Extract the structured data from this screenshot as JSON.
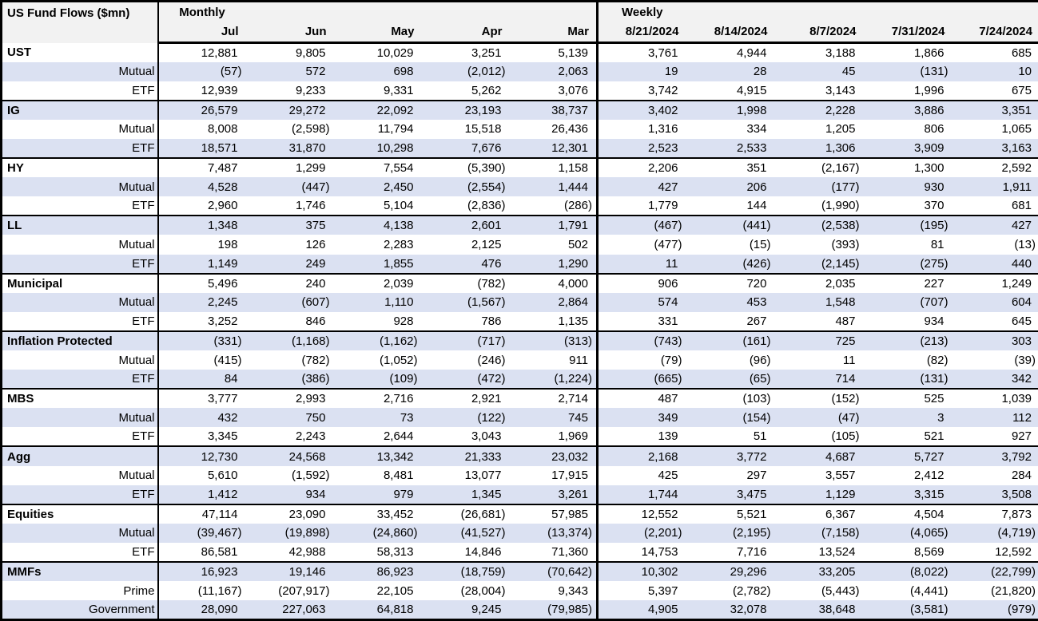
{
  "colors": {
    "band": "#dbe1f2",
    "header_bg": "#f2f2f2",
    "border": "#000000",
    "text": "#000000"
  },
  "chart_data": {
    "type": "table",
    "title": "US Fund Flows ($mn)",
    "sections": [
      {
        "label": "Monthly",
        "columns": [
          "Jul",
          "Jun",
          "May",
          "Apr",
          "Mar"
        ]
      },
      {
        "label": "Weekly",
        "columns": [
          "8/21/2024",
          "8/14/2024",
          "8/7/2024",
          "7/31/2024",
          "7/24/2024"
        ]
      }
    ],
    "groups": [
      {
        "name": "UST",
        "rows": [
          {
            "label": "UST",
            "style": "category",
            "monthly": [
              "12,881",
              "9,805",
              "10,029",
              "3,251",
              "5,139"
            ],
            "weekly": [
              "3,761",
              "4,944",
              "3,188",
              "1,866",
              "685"
            ]
          },
          {
            "label": "Mutual",
            "style": "sub",
            "monthly": [
              "(57)",
              "572",
              "698",
              "(2,012)",
              "2,063"
            ],
            "weekly": [
              "19",
              "28",
              "45",
              "(131)",
              "10"
            ]
          },
          {
            "label": "ETF",
            "style": "sub",
            "monthly": [
              "12,939",
              "9,233",
              "9,331",
              "5,262",
              "3,076"
            ],
            "weekly": [
              "3,742",
              "4,915",
              "3,143",
              "1,996",
              "675"
            ]
          }
        ]
      },
      {
        "name": "IG",
        "rows": [
          {
            "label": "IG",
            "style": "category",
            "monthly": [
              "26,579",
              "29,272",
              "22,092",
              "23,193",
              "38,737"
            ],
            "weekly": [
              "3,402",
              "1,998",
              "2,228",
              "3,886",
              "3,351"
            ]
          },
          {
            "label": "Mutual",
            "style": "sub",
            "monthly": [
              "8,008",
              "(2,598)",
              "11,794",
              "15,518",
              "26,436"
            ],
            "weekly": [
              "1,316",
              "334",
              "1,205",
              "806",
              "1,065"
            ]
          },
          {
            "label": "ETF",
            "style": "sub",
            "monthly": [
              "18,571",
              "31,870",
              "10,298",
              "7,676",
              "12,301"
            ],
            "weekly": [
              "2,523",
              "2,533",
              "1,306",
              "3,909",
              "3,163"
            ]
          }
        ]
      },
      {
        "name": "HY",
        "rows": [
          {
            "label": "HY",
            "style": "category",
            "monthly": [
              "7,487",
              "1,299",
              "7,554",
              "(5,390)",
              "1,158"
            ],
            "weekly": [
              "2,206",
              "351",
              "(2,167)",
              "1,300",
              "2,592"
            ]
          },
          {
            "label": "Mutual",
            "style": "sub",
            "monthly": [
              "4,528",
              "(447)",
              "2,450",
              "(2,554)",
              "1,444"
            ],
            "weekly": [
              "427",
              "206",
              "(177)",
              "930",
              "1,911"
            ]
          },
          {
            "label": "ETF",
            "style": "sub",
            "monthly": [
              "2,960",
              "1,746",
              "5,104",
              "(2,836)",
              "(286)"
            ],
            "weekly": [
              "1,779",
              "144",
              "(1,990)",
              "370",
              "681"
            ]
          }
        ]
      },
      {
        "name": "LL",
        "rows": [
          {
            "label": "LL",
            "style": "category",
            "monthly": [
              "1,348",
              "375",
              "4,138",
              "2,601",
              "1,791"
            ],
            "weekly": [
              "(467)",
              "(441)",
              "(2,538)",
              "(195)",
              "427"
            ]
          },
          {
            "label": "Mutual",
            "style": "sub",
            "monthly": [
              "198",
              "126",
              "2,283",
              "2,125",
              "502"
            ],
            "weekly": [
              "(477)",
              "(15)",
              "(393)",
              "81",
              "(13)"
            ]
          },
          {
            "label": "ETF",
            "style": "sub",
            "monthly": [
              "1,149",
              "249",
              "1,855",
              "476",
              "1,290"
            ],
            "weekly": [
              "11",
              "(426)",
              "(2,145)",
              "(275)",
              "440"
            ]
          }
        ]
      },
      {
        "name": "Municipal",
        "rows": [
          {
            "label": "Municipal",
            "style": "category",
            "monthly": [
              "5,496",
              "240",
              "2,039",
              "(782)",
              "4,000"
            ],
            "weekly": [
              "906",
              "720",
              "2,035",
              "227",
              "1,249"
            ]
          },
          {
            "label": "Mutual",
            "style": "sub",
            "monthly": [
              "2,245",
              "(607)",
              "1,110",
              "(1,567)",
              "2,864"
            ],
            "weekly": [
              "574",
              "453",
              "1,548",
              "(707)",
              "604"
            ]
          },
          {
            "label": "ETF",
            "style": "sub",
            "monthly": [
              "3,252",
              "846",
              "928",
              "786",
              "1,135"
            ],
            "weekly": [
              "331",
              "267",
              "487",
              "934",
              "645"
            ]
          }
        ]
      },
      {
        "name": "Inflation Protected",
        "rows": [
          {
            "label": "Inflation Protected",
            "style": "category",
            "monthly": [
              "(331)",
              "(1,168)",
              "(1,162)",
              "(717)",
              "(313)"
            ],
            "weekly": [
              "(743)",
              "(161)",
              "725",
              "(213)",
              "303"
            ]
          },
          {
            "label": "Mutual",
            "style": "sub",
            "monthly": [
              "(415)",
              "(782)",
              "(1,052)",
              "(246)",
              "911"
            ],
            "weekly": [
              "(79)",
              "(96)",
              "11",
              "(82)",
              "(39)"
            ]
          },
          {
            "label": "ETF",
            "style": "sub",
            "monthly": [
              "84",
              "(386)",
              "(109)",
              "(472)",
              "(1,224)"
            ],
            "weekly": [
              "(665)",
              "(65)",
              "714",
              "(131)",
              "342"
            ]
          }
        ]
      },
      {
        "name": "MBS",
        "rows": [
          {
            "label": "MBS",
            "style": "category",
            "monthly": [
              "3,777",
              "2,993",
              "2,716",
              "2,921",
              "2,714"
            ],
            "weekly": [
              "487",
              "(103)",
              "(152)",
              "525",
              "1,039"
            ]
          },
          {
            "label": "Mutual",
            "style": "sub",
            "monthly": [
              "432",
              "750",
              "73",
              "(122)",
              "745"
            ],
            "weekly": [
              "349",
              "(154)",
              "(47)",
              "3",
              "112"
            ]
          },
          {
            "label": "ETF",
            "style": "sub",
            "monthly": [
              "3,345",
              "2,243",
              "2,644",
              "3,043",
              "1,969"
            ],
            "weekly": [
              "139",
              "51",
              "(105)",
              "521",
              "927"
            ]
          }
        ]
      },
      {
        "name": "Agg",
        "rows": [
          {
            "label": "Agg",
            "style": "category",
            "monthly": [
              "12,730",
              "24,568",
              "13,342",
              "21,333",
              "23,032"
            ],
            "weekly": [
              "2,168",
              "3,772",
              "4,687",
              "5,727",
              "3,792"
            ]
          },
          {
            "label": "Mutual",
            "style": "sub",
            "monthly": [
              "5,610",
              "(1,592)",
              "8,481",
              "13,077",
              "17,915"
            ],
            "weekly": [
              "425",
              "297",
              "3,557",
              "2,412",
              "284"
            ]
          },
          {
            "label": "ETF",
            "style": "sub",
            "monthly": [
              "1,412",
              "934",
              "979",
              "1,345",
              "3,261"
            ],
            "weekly": [
              "1,744",
              "3,475",
              "1,129",
              "3,315",
              "3,508"
            ]
          }
        ]
      },
      {
        "name": "Equities",
        "rows": [
          {
            "label": "Equities",
            "style": "category",
            "monthly": [
              "47,114",
              "23,090",
              "33,452",
              "(26,681)",
              "57,985"
            ],
            "weekly": [
              "12,552",
              "5,521",
              "6,367",
              "4,504",
              "7,873"
            ]
          },
          {
            "label": "Mutual",
            "style": "sub",
            "monthly": [
              "(39,467)",
              "(19,898)",
              "(24,860)",
              "(41,527)",
              "(13,374)"
            ],
            "weekly": [
              "(2,201)",
              "(2,195)",
              "(7,158)",
              "(4,065)",
              "(4,719)"
            ]
          },
          {
            "label": "ETF",
            "style": "sub",
            "monthly": [
              "86,581",
              "42,988",
              "58,313",
              "14,846",
              "71,360"
            ],
            "weekly": [
              "14,753",
              "7,716",
              "13,524",
              "8,569",
              "12,592"
            ]
          }
        ]
      },
      {
        "name": "MMFs",
        "rows": [
          {
            "label": "MMFs",
            "style": "category",
            "monthly": [
              "16,923",
              "19,146",
              "86,923",
              "(18,759)",
              "(70,642)"
            ],
            "weekly": [
              "10,302",
              "29,296",
              "33,205",
              "(8,022)",
              "(22,799)"
            ]
          },
          {
            "label": "Prime",
            "style": "sub",
            "monthly": [
              "(11,167)",
              "(207,917)",
              "22,105",
              "(28,004)",
              "9,343"
            ],
            "weekly": [
              "5,397",
              "(2,782)",
              "(5,443)",
              "(4,441)",
              "(21,820)"
            ]
          },
          {
            "label": "Government",
            "style": "sub",
            "monthly": [
              "28,090",
              "227,063",
              "64,818",
              "9,245",
              "(79,985)"
            ],
            "weekly": [
              "4,905",
              "32,078",
              "38,648",
              "(3,581)",
              "(979)"
            ]
          }
        ]
      }
    ]
  }
}
